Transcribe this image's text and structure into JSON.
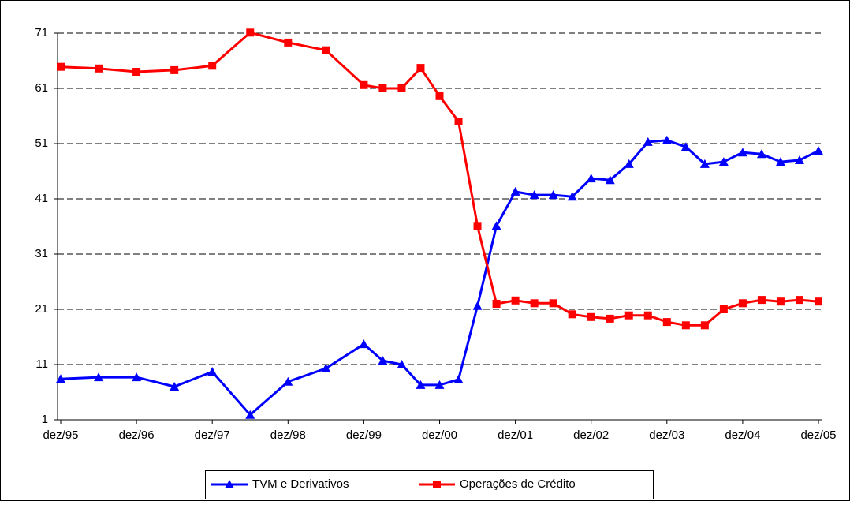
{
  "chart_data": {
    "type": "line",
    "x": [
      0,
      6,
      12,
      18,
      24,
      30,
      36,
      42,
      48,
      51,
      54,
      57,
      60,
      63,
      66,
      69,
      72,
      75,
      78,
      81,
      84,
      87,
      90,
      93,
      96,
      99,
      102,
      105,
      108,
      111,
      114,
      117,
      120
    ],
    "xlim": [
      0,
      120
    ],
    "xticks": [
      {
        "value": 0,
        "label": "dez/95"
      },
      {
        "value": 12,
        "label": "dez/96"
      },
      {
        "value": 24,
        "label": "dez/97"
      },
      {
        "value": 36,
        "label": "dez/98"
      },
      {
        "value": 48,
        "label": "dez/99"
      },
      {
        "value": 60,
        "label": "dez/00"
      },
      {
        "value": 72,
        "label": "dez/01"
      },
      {
        "value": 84,
        "label": "dez/02"
      },
      {
        "value": 96,
        "label": "dez/03"
      },
      {
        "value": 108,
        "label": "dez/04"
      },
      {
        "value": 120,
        "label": "dez/05"
      }
    ],
    "ylim": [
      1,
      71
    ],
    "yticks": [
      1,
      11,
      21,
      31,
      41,
      51,
      61,
      71
    ],
    "grid": true,
    "series": [
      {
        "name": "TVM e Derivativos",
        "color": "#0000ff",
        "marker": "triangle",
        "values": [
          8.4,
          8.7,
          8.7,
          7,
          9.7,
          1.9,
          7.9,
          10.3,
          14.7,
          11.7,
          11,
          7.3,
          7.3,
          8.3,
          21.6,
          36.1,
          42.3,
          41.7,
          41.7,
          41.4,
          44.7,
          44.4,
          47.3,
          51.3,
          51.6,
          50.4,
          47.3,
          47.7,
          49.4,
          49.1,
          47.7,
          48,
          49.7
        ]
      },
      {
        "name": "Operações de Crédito",
        "color": "#ff0000",
        "marker": "square",
        "values": [
          64.9,
          64.6,
          64,
          64.3,
          65.1,
          71.1,
          69.3,
          67.9,
          61.6,
          61,
          61,
          64.7,
          59.6,
          55,
          36.1,
          22,
          22.6,
          22.1,
          22.1,
          20.1,
          19.6,
          19.3,
          19.9,
          19.9,
          18.7,
          18.1,
          18.1,
          21,
          22.1,
          22.7,
          22.4,
          22.7,
          22.4
        ]
      }
    ]
  }
}
